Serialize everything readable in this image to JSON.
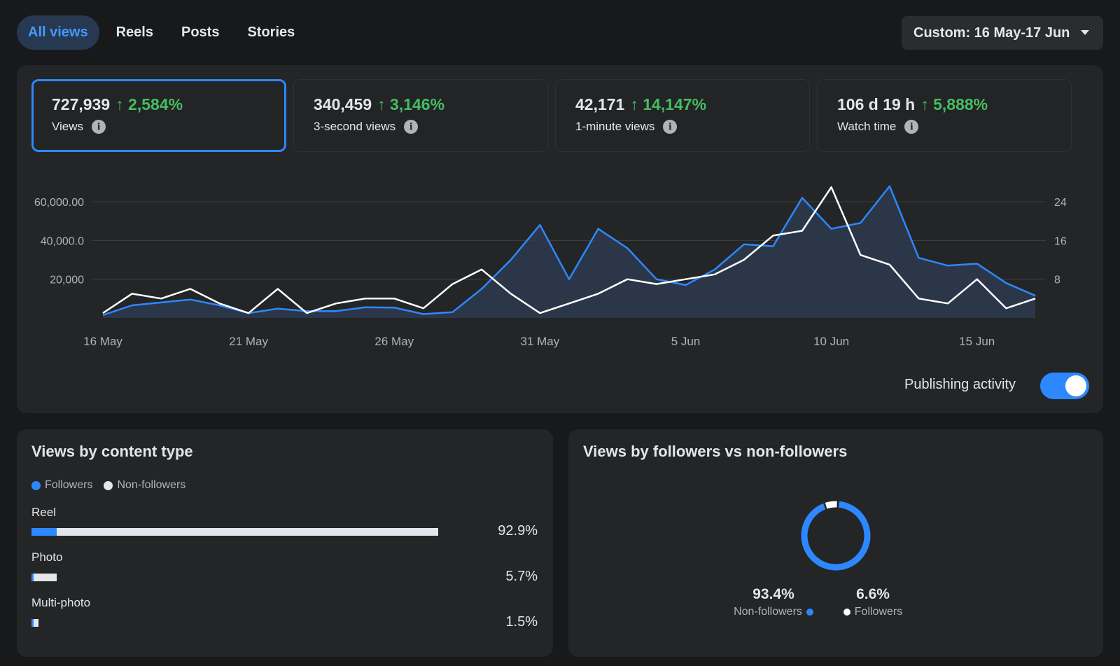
{
  "tabs": [
    {
      "label": "All views",
      "active": true
    },
    {
      "label": "Reels",
      "active": false
    },
    {
      "label": "Posts",
      "active": false
    },
    {
      "label": "Stories",
      "active": false
    }
  ],
  "date_range": {
    "label": "Custom: 16 May-17 Jun"
  },
  "metrics": [
    {
      "value": "727,939",
      "change": "↑ 2,584%",
      "label": "Views",
      "selected": true
    },
    {
      "value": "340,459",
      "change": "↑ 3,146%",
      "label": "3-second views",
      "selected": false
    },
    {
      "value": "42,171",
      "change": "↑ 14,147%",
      "label": "1-minute views",
      "selected": false
    },
    {
      "value": "106 d 19 h",
      "change": "↑ 5,888%",
      "label": "Watch time",
      "selected": false
    }
  ],
  "colors": {
    "accent": "#2d88ff",
    "positive": "#45bd62",
    "secondary_line": "#ffffff"
  },
  "publishing_activity": {
    "label": "Publishing activity",
    "enabled": true
  },
  "chart_data": {
    "type": "line",
    "x": [
      "16 May",
      "17 May",
      "18 May",
      "19 May",
      "20 May",
      "21 May",
      "22 May",
      "23 May",
      "24 May",
      "25 May",
      "26 May",
      "27 May",
      "28 May",
      "29 May",
      "30 May",
      "31 May",
      "1 Jun",
      "2 Jun",
      "3 Jun",
      "4 Jun",
      "5 Jun",
      "6 Jun",
      "7 Jun",
      "8 Jun",
      "9 Jun",
      "10 Jun",
      "11 Jun",
      "12 Jun",
      "13 Jun",
      "14 Jun",
      "15 Jun",
      "16 Jun",
      "17 Jun"
    ],
    "x_tick_labels": [
      "16 May",
      "21 May",
      "26 May",
      "31 May",
      "5 Jun",
      "10 Jun",
      "15 Jun"
    ],
    "y_left_ticks": [
      "20,000",
      "40,000.0",
      "60,000.00"
    ],
    "y_right_ticks": [
      "8",
      "16",
      "24"
    ],
    "ylim_left": [
      0,
      60000
    ],
    "ylim_right": [
      0,
      24
    ],
    "grid": true,
    "series": [
      {
        "axis": "left",
        "color": "#2d88ff",
        "fill": true,
        "values": [
          1500,
          6500,
          8000,
          9500,
          6500,
          2500,
          4800,
          3500,
          3500,
          5500,
          5300,
          2000,
          3000,
          15000,
          30000,
          48000,
          20000,
          46000,
          36000,
          20000,
          17000,
          25000,
          38000,
          37000,
          62000,
          46000,
          49000,
          68000,
          31000,
          27000,
          28000,
          18000,
          11500
        ]
      },
      {
        "axis": "right",
        "color": "#ffffff",
        "fill": false,
        "values": [
          1,
          5,
          4,
          6,
          3,
          1,
          6,
          1,
          3,
          4,
          4,
          2,
          7,
          10,
          5,
          1,
          3,
          5,
          8,
          7,
          8,
          9,
          12,
          17,
          18,
          27,
          13,
          11,
          4,
          3,
          8,
          2,
          4
        ]
      }
    ]
  },
  "content_type": {
    "title": "Views by content type",
    "legend": [
      {
        "label": "Followers",
        "color": "#2d88ff"
      },
      {
        "label": "Non-followers",
        "color": "#e4e6eb"
      }
    ],
    "rows": [
      {
        "label": "Reel",
        "pct": "92.9%",
        "total": 0.929,
        "followers_fraction": 0.062
      },
      {
        "label": "Photo",
        "pct": "5.7%",
        "total": 0.057,
        "followers_fraction": 0.07
      },
      {
        "label": "Multi-photo",
        "pct": "1.5%",
        "total": 0.015,
        "followers_fraction": 0.1
      }
    ]
  },
  "followers_split": {
    "title": "Views by followers vs non-followers",
    "non_followers": {
      "pct": "93.4%",
      "label": "Non-followers",
      "value": 93.4,
      "color": "#2d88ff"
    },
    "followers": {
      "pct": "6.6%",
      "label": "Followers",
      "value": 6.6,
      "color": "#ffffff"
    }
  }
}
